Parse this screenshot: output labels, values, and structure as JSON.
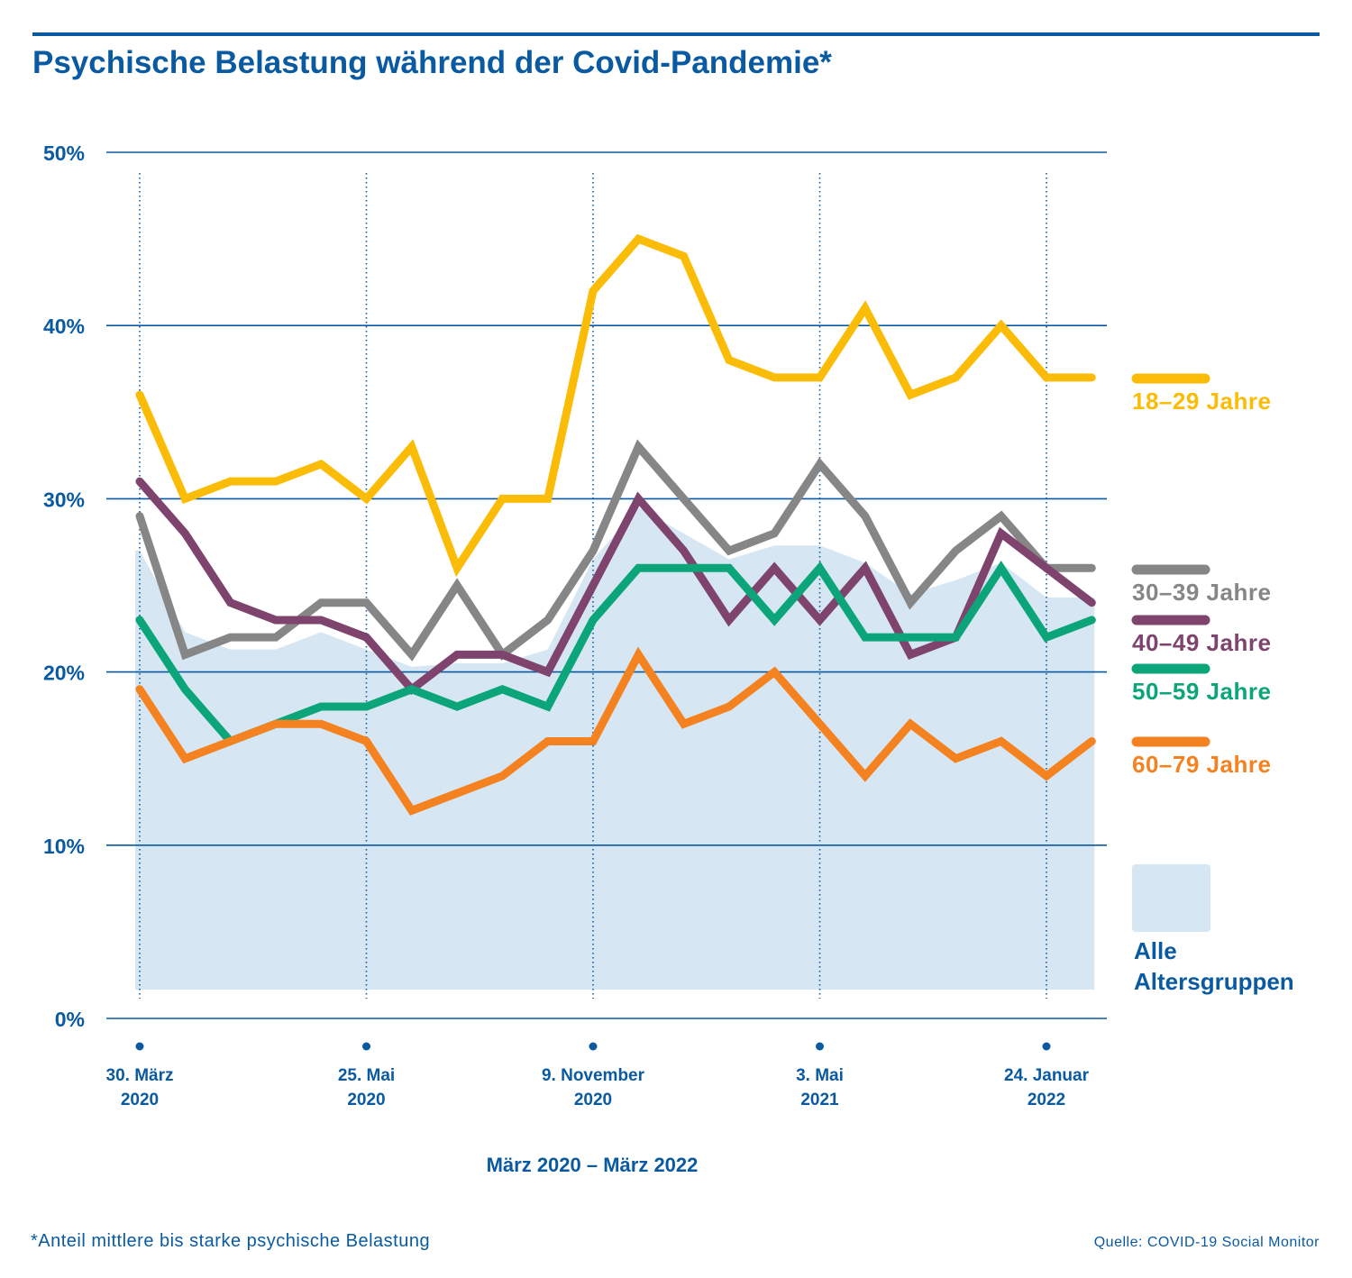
{
  "title": "Psychische Belastung während der Covid-Pandemie*",
  "footnote": "*Anteil mittlere bis starke psychische Belastung",
  "source": "Quelle: COVID-19 Social Monitor",
  "colors": {
    "brand": "#0a5aa2",
    "area": "#d6e7f3",
    "grid": "#0a5aa2"
  },
  "chart_data": {
    "type": "line",
    "x_range_label": "März 2020 – März 2022",
    "y_ticks": [
      "0%",
      "10%",
      "20%",
      "30%",
      "40%",
      "50%"
    ],
    "ylim": [
      0,
      50
    ],
    "grid": true,
    "legend_position": "right",
    "x_labels": [
      {
        "index": 0,
        "line1": "30. März",
        "line2": "2020"
      },
      {
        "index": 5,
        "line1": "25. Mai",
        "line2": "2020"
      },
      {
        "index": 10,
        "line1": "9. November",
        "line2": "2020"
      },
      {
        "index": 15,
        "line1": "3. Mai",
        "line2": "2021"
      },
      {
        "index": 20,
        "line1": "24. Januar",
        "line2": "2022"
      }
    ],
    "area": {
      "name": "Alle Altersgruppen",
      "name_lines": [
        "Alle",
        "Altersgruppen"
      ],
      "color": "#d6e7f3",
      "values": [
        27,
        22.3,
        21.3,
        21.3,
        22.3,
        21.3,
        20.3,
        20.5,
        20.5,
        21.3,
        26.5,
        29.5,
        28,
        26.5,
        27.3,
        27.3,
        26.3,
        24.5,
        25.3,
        26.3,
        24.3,
        24.3
      ]
    },
    "series": [
      {
        "name": "18–29 Jahre",
        "color": "#fbbc08",
        "values": [
          36,
          30,
          31,
          31,
          32,
          30,
          33,
          26,
          30,
          30,
          42,
          45,
          44,
          38,
          37,
          37,
          41,
          36,
          37,
          40,
          37,
          37
        ]
      },
      {
        "name": "30–39 Jahre",
        "color": "#868686",
        "values": [
          29,
          21,
          22,
          22,
          24,
          24,
          21,
          25,
          21,
          23,
          27,
          33,
          30,
          27,
          28,
          32,
          29,
          24,
          27,
          29,
          26,
          26
        ]
      },
      {
        "name": "40–49 Jahre",
        "color": "#7e446e",
        "values": [
          31,
          28,
          24,
          23,
          23,
          22,
          19,
          21,
          21,
          20,
          25,
          30,
          27,
          23,
          26,
          23,
          26,
          21,
          22,
          28,
          26,
          24
        ]
      },
      {
        "name": "50–59 Jahre",
        "color": "#0ca57a",
        "values": [
          23,
          19,
          16,
          17,
          18,
          18,
          19,
          18,
          19,
          18,
          23,
          26,
          26,
          26,
          23,
          26,
          22,
          22,
          22,
          26,
          22,
          23
        ]
      },
      {
        "name": "60–79 Jahre",
        "color": "#f58220",
        "values": [
          19,
          15,
          16,
          17,
          17,
          16,
          12,
          13,
          14,
          16,
          16,
          21,
          17,
          18,
          20,
          17,
          14,
          17,
          15,
          16,
          14,
          16
        ]
      }
    ]
  }
}
